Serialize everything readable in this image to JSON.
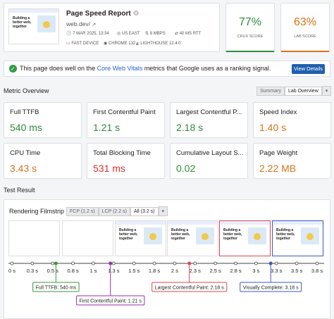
{
  "header": {
    "title": "Page Speed Report",
    "url": "web.dev/",
    "date": "7 MAR 2025, 13:34",
    "location": "US EAST",
    "bandwidth": "8 MBPS",
    "rtt": "40 MS RTT",
    "device": "FAST DEVICE",
    "browser": "CHROME 132",
    "lighthouse": "LIGHTHOUSE 12.4.0",
    "thumbnail_text": "Building a better web, together"
  },
  "scores": [
    {
      "value": "77%",
      "label": "CRUX SCORE",
      "color": "#2e8b3e"
    },
    {
      "value": "63%",
      "label": "LAB SCORE",
      "color": "#d9731a"
    }
  ],
  "banner": {
    "text_before": "This page does well on the",
    "link": "Core Web Vitals",
    "text_after": "metrics that Google uses as a ranking signal.",
    "button": "View Details"
  },
  "metric_overview": {
    "title": "Metric Overview",
    "tabs": [
      "Summary",
      "Lab Overview"
    ],
    "selected_tab": 1,
    "metrics": [
      {
        "label": "Full TTFB",
        "value": "540 ms",
        "color": "#2e8b3e"
      },
      {
        "label": "First Contentful Paint",
        "value": "1.21 s",
        "color": "#2e8b3e"
      },
      {
        "label": "Largest Contentful P...",
        "value": "2.18 s",
        "color": "#2e8b3e"
      },
      {
        "label": "Speed Index",
        "value": "1.40 s",
        "color": "#d9731a"
      },
      {
        "label": "CPU Time",
        "value": "3.43 s",
        "color": "#d9731a"
      },
      {
        "label": "Total Blocking Time",
        "value": "531 ms",
        "color": "#d93030"
      },
      {
        "label": "Cumulative Layout S...",
        "value": "0.02",
        "color": "#2e8b3e"
      },
      {
        "label": "Page Weight",
        "value": "2.22 MB",
        "color": "#d9731a"
      }
    ]
  },
  "test_result": {
    "title": "Test Result",
    "filmstrip_title": "Rendering Filmstrip",
    "tabs": [
      "FCP (1.2 s)",
      "LCP (2.2 s)",
      "All (3.2 s)"
    ],
    "selected_tab": 2,
    "ticks": [
      {
        "value": 0,
        "label": "0 s"
      },
      {
        "value": 0.25,
        "label": "0.3 s"
      },
      {
        "value": 0.5,
        "label": "0.5 s"
      },
      {
        "value": 0.75,
        "label": "0.8 s"
      },
      {
        "value": 1,
        "label": "1 s"
      },
      {
        "value": 1.25,
        "label": "1.3 s"
      },
      {
        "value": 1.5,
        "label": "1.5 s"
      },
      {
        "value": 1.75,
        "label": "1.8 s"
      },
      {
        "value": 2,
        "label": "2 s"
      },
      {
        "value": 2.25,
        "label": "2.3 s"
      },
      {
        "value": 2.5,
        "label": "2.5 s"
      },
      {
        "value": 2.75,
        "label": "2.8 s"
      },
      {
        "value": 3,
        "label": "3 s"
      },
      {
        "value": 3.25,
        "label": "3.3 s"
      },
      {
        "value": 3.5,
        "label": "3.5 s"
      },
      {
        "value": 3.75,
        "label": "3.8 s"
      }
    ],
    "markers": [
      {
        "label": "Full TTFB: 540 ms",
        "at": 0.54,
        "color": "#3a9a3a"
      },
      {
        "label": "First Contentful Paint: 1.21 s",
        "at": 1.21,
        "color": "#9b2fae"
      },
      {
        "label": "Largest Contentful Paint: 2.18 s",
        "at": 2.18,
        "color": "#e0454d"
      },
      {
        "label": "Visually Complete: 3.18 s",
        "at": 3.18,
        "color": "#3b57c4"
      }
    ]
  }
}
